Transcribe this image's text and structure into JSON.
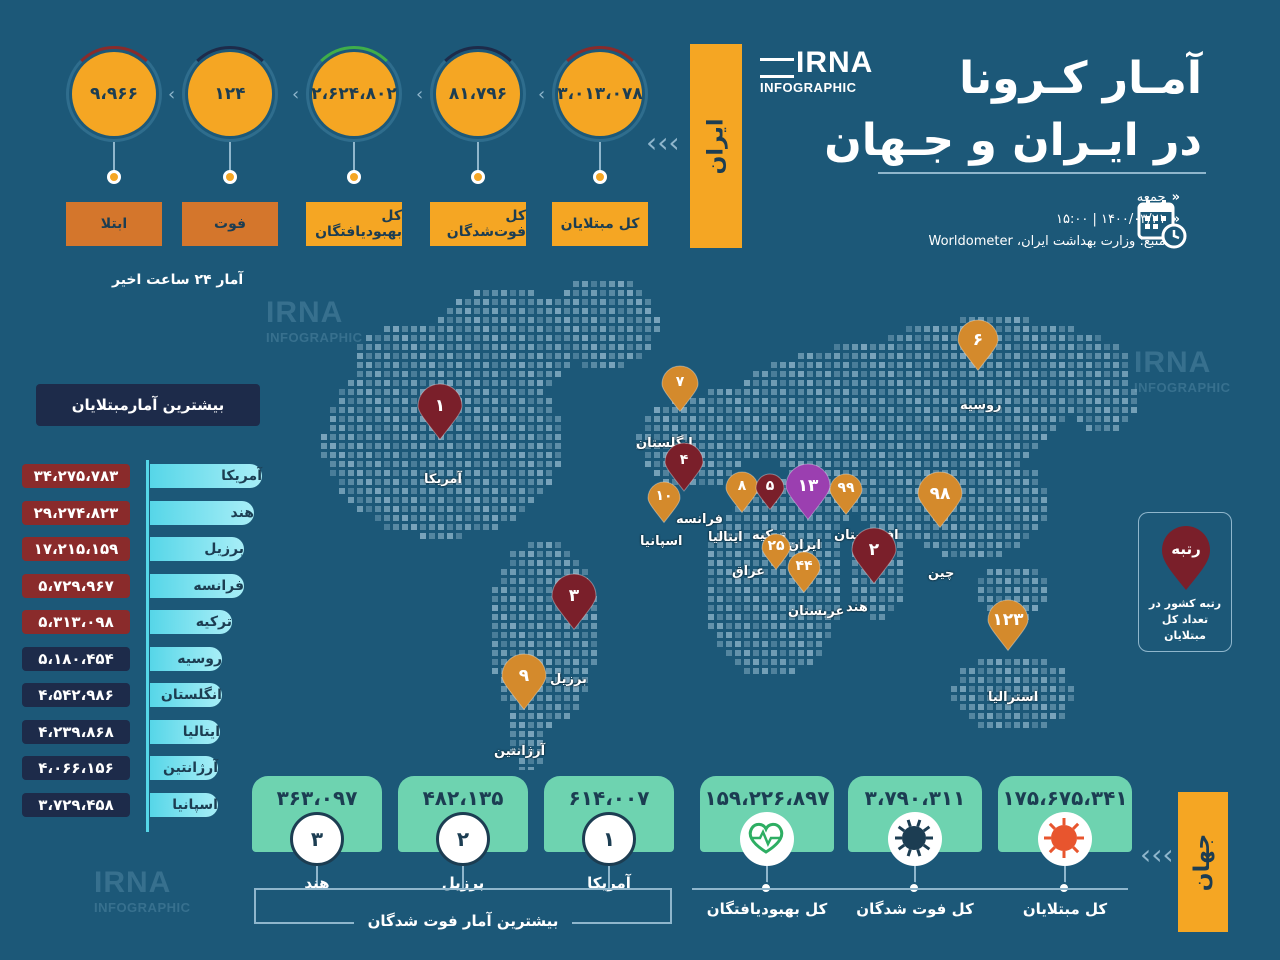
{
  "title": {
    "line1": "آمـار کـرونا",
    "line2": "در ایـران و جـهان"
  },
  "logo": {
    "brand": "IRNA",
    "sub": "INFOGRAPHIC"
  },
  "info": {
    "day": "جمعه",
    "date_time": "۱۴۰۰/۰۳/۲۱  |  ۱۵:۰۰",
    "source": "منبع: وزارت بهداشت ایران، Worldometer"
  },
  "iran": {
    "tab_label": "ایران",
    "note": "آمار ۲۴ ساعت اخیر",
    "stats": [
      {
        "label": "کل مبتلایان",
        "value": "۳،۰۱۳،۰۷۸",
        "ring_color": "#8a2b2b",
        "label_bg": "#f5a623"
      },
      {
        "label": "کل فوت‌شدگان",
        "value": "۸۱،۷۹۶",
        "ring_color": "#1d2b4a",
        "label_bg": "#f5a623"
      },
      {
        "label": "کل بهبودیافتگان",
        "value": "۲،۶۲۴،۸۰۲",
        "ring_color": "#3fae4a",
        "label_bg": "#f5a623"
      },
      {
        "label": "فوت",
        "value": "۱۲۴",
        "ring_color": "#1d2b4a",
        "label_bg": "#d4762c"
      },
      {
        "label": "ابتلا",
        "value": "۹،۹۶۶",
        "ring_color": "#8a2b2b",
        "label_bg": "#d4762c"
      }
    ]
  },
  "top_cases": {
    "heading": "بیشترین آمارمبتلایان",
    "rows": [
      {
        "country": "آمریکا",
        "value": "۳۴،۲۷۵،۷۸۳",
        "color": "#8a2b2b"
      },
      {
        "country": "هند",
        "value": "۲۹،۲۷۴،۸۲۳",
        "color": "#8a2b2b"
      },
      {
        "country": "برزیل",
        "value": "۱۷،۲۱۵،۱۵۹",
        "color": "#8a2b2b"
      },
      {
        "country": "فرانسه",
        "value": "۵،۷۲۹،۹۶۷",
        "color": "#8a2b2b"
      },
      {
        "country": "ترکیه",
        "value": "۵،۳۱۳،۰۹۸",
        "color": "#8a2b2b"
      },
      {
        "country": "روسیه",
        "value": "۵،۱۸۰،۴۵۴",
        "color": "#1d2b4a"
      },
      {
        "country": "انگلستان",
        "value": "۴،۵۴۲،۹۸۶",
        "color": "#1d2b4a"
      },
      {
        "country": "ایتالیا",
        "value": "۴،۲۳۹،۸۶۸",
        "color": "#1d2b4a"
      },
      {
        "country": "آرژانتین",
        "value": "۴،۰۶۶،۱۵۶",
        "color": "#1d2b4a"
      },
      {
        "country": "اسپانیا",
        "value": "۳،۷۲۹،۴۵۸",
        "color": "#1d2b4a"
      }
    ]
  },
  "map_pins": [
    {
      "rank": "۱",
      "country": "آمریکا",
      "color": "#7a1f2a"
    },
    {
      "rank": "۳",
      "country": "برزیل",
      "color": "#7a1f2a"
    },
    {
      "rank": "۹",
      "country": "آرژانتین",
      "color": "#d48a2c"
    },
    {
      "rank": "۷",
      "country": "انگلستان",
      "color": "#d48a2c"
    },
    {
      "rank": "۴",
      "country": "فرانسه",
      "color": "#7a1f2a"
    },
    {
      "rank": "۱۰",
      "country": "اسپانیا",
      "color": "#d48a2c"
    },
    {
      "rank": "۸",
      "country": "ایتالیا",
      "color": "#d48a2c"
    },
    {
      "rank": "۵",
      "country": "ترکیه",
      "color": "#7a1f2a"
    },
    {
      "rank": "۱۳",
      "country": "ایران",
      "color": "#9b3fb0"
    },
    {
      "rank": "۹۹",
      "country": "افغانستان",
      "color": "#d48a2c"
    },
    {
      "rank": "۲۵",
      "country": "عراق",
      "color": "#d48a2c"
    },
    {
      "rank": "۴۴",
      "country": "عربستان",
      "color": "#d48a2c"
    },
    {
      "rank": "۲",
      "country": "هند",
      "color": "#7a1f2a"
    },
    {
      "rank": "۹۸",
      "country": "چین",
      "color": "#d48a2c"
    },
    {
      "rank": "۶",
      "country": "روسیه",
      "color": "#d48a2c"
    },
    {
      "rank": "۱۲۳",
      "country": "استرالیا",
      "color": "#d48a2c"
    }
  ],
  "legend": {
    "pin_text": "رتبه",
    "caption": "رتبه کشور در تعداد کل مبتلایان"
  },
  "world": {
    "tab_label": "جهان",
    "totals": [
      {
        "label": "کل مبتلایان",
        "value": "۱۷۵،۶۷۵،۳۴۱",
        "icon": "virus-icon"
      },
      {
        "label": "کل فوت شدگان",
        "value": "۳،۷۹۰،۳۱۱",
        "icon": "virus-dark-icon"
      },
      {
        "label": "کل بهبودیافتگان",
        "value": "۱۵۹،۲۲۶،۸۹۷",
        "icon": "heartbeat-icon"
      }
    ],
    "deaths_heading": "بیشترین آمار فوت شدگان",
    "top_deaths": [
      {
        "rank": "۱",
        "country": "آمریکا",
        "value": "۶۱۴،۰۰۷"
      },
      {
        "rank": "۲",
        "country": "برزیل",
        "value": "۴۸۲،۱۳۵"
      },
      {
        "rank": "۳",
        "country": "هند",
        "value": "۳۶۳،۰۹۷"
      }
    ]
  }
}
